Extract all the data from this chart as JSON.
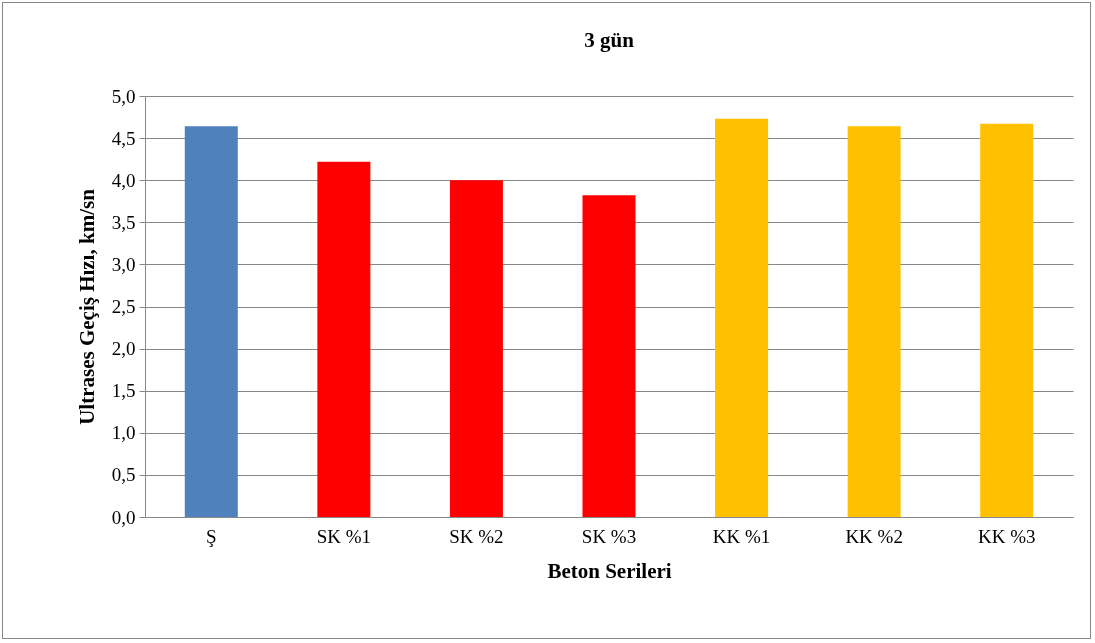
{
  "chart_data": {
    "type": "bar",
    "title": "3 gün",
    "xlabel": "Beton Serileri",
    "ylabel": "Ultrases Geçiş Hızı,  km/sn",
    "categories": [
      "Ş",
      "SK %1",
      "SK %2",
      "SK %3",
      "KK %1",
      "KK %2",
      "KK %3"
    ],
    "values": [
      4.64,
      4.22,
      4.0,
      3.82,
      4.73,
      4.64,
      4.67
    ],
    "colors": [
      "#4f81bd",
      "#ff0000",
      "#ff0000",
      "#ff0000",
      "#ffc000",
      "#ffc000",
      "#ffc000"
    ],
    "ylim": [
      0,
      5
    ],
    "yticks": [
      {
        "value": 0,
        "label": "0,0"
      },
      {
        "value": 0.5,
        "label": "0,5"
      },
      {
        "value": 1,
        "label": "1,0"
      },
      {
        "value": 1.5,
        "label": "1,5"
      },
      {
        "value": 2,
        "label": "2,0"
      },
      {
        "value": 2.5,
        "label": "2,5"
      },
      {
        "value": 3,
        "label": "3,0"
      },
      {
        "value": 3.5,
        "label": "3,5"
      },
      {
        "value": 4,
        "label": "4,0"
      },
      {
        "value": 4.5,
        "label": "4,5"
      },
      {
        "value": 5,
        "label": "5,0"
      }
    ],
    "grid": "y"
  }
}
